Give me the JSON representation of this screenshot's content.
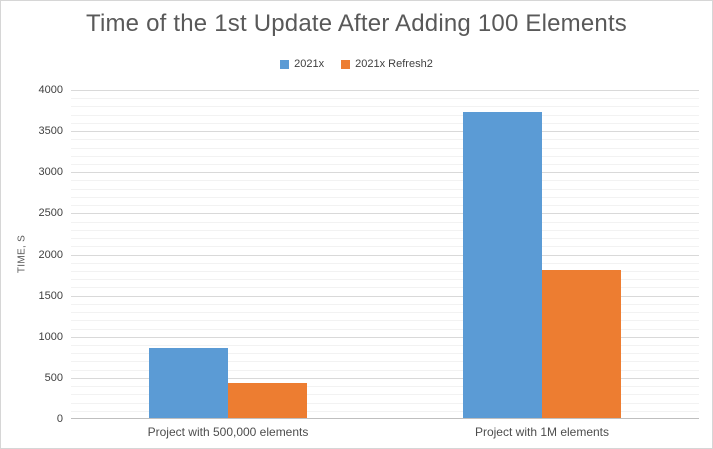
{
  "chart_data": {
    "type": "bar",
    "title": "Time of the 1st Update After Adding 100 Elements",
    "categories": [
      "Project with 500,000 elements",
      "Project with 1M elements"
    ],
    "series": [
      {
        "name": "2021x",
        "color": "#5B9BD5",
        "values": [
          850,
          3725
        ]
      },
      {
        "name": "2021x Refresh2",
        "color": "#ED7D31",
        "values": [
          420,
          1800
        ]
      }
    ],
    "xlabel": "",
    "ylabel": "TIME, S",
    "ylim": [
      0,
      4000
    ],
    "y_major_step": 500,
    "y_minor_step": 100,
    "y_tick_labels": [
      "0",
      "500",
      "1000",
      "1500",
      "2000",
      "2500",
      "3000",
      "3500",
      "4000"
    ],
    "legend_position": "top",
    "grid": true
  },
  "colors": {
    "grid_major": "#D9D9D9",
    "grid_minor": "#F2F2F2",
    "axis_line": "#BFBFBF",
    "chart_border": "#D6D6D6",
    "title_text": "#595959",
    "tick_text": "#404040"
  }
}
